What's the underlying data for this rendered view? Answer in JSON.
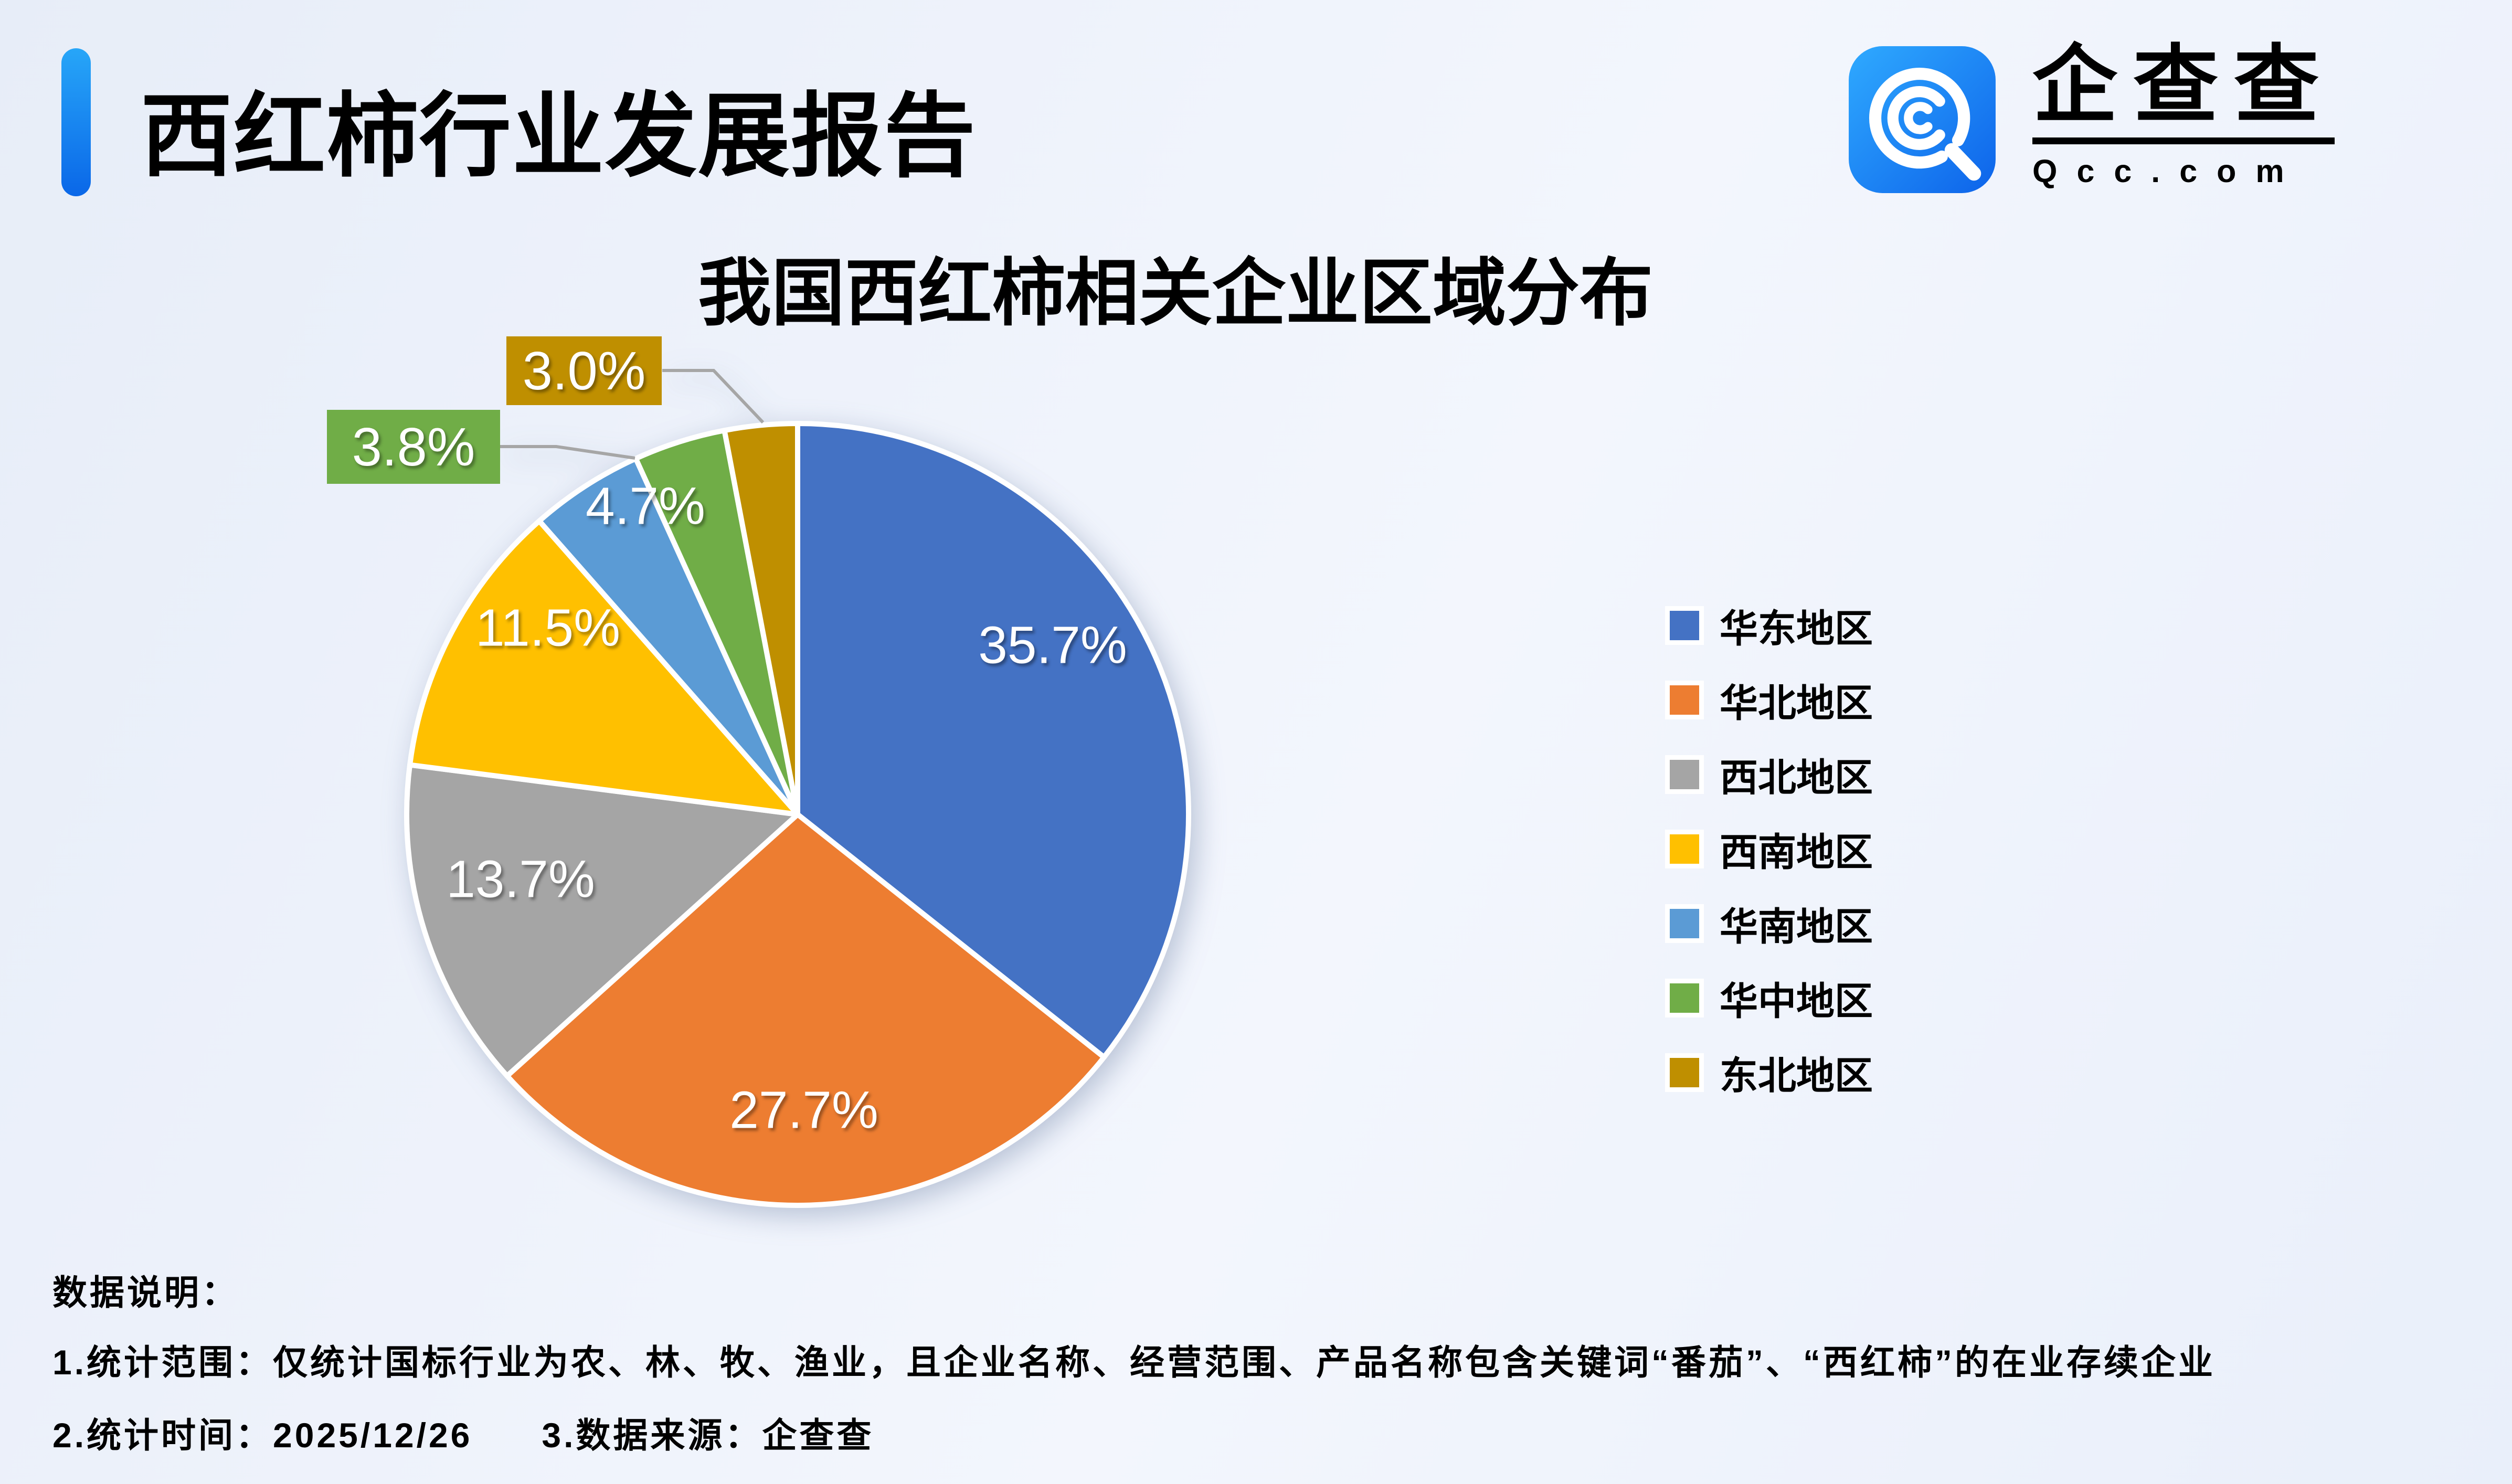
{
  "header": {
    "title": "西红柿行业发展报告",
    "logo": {
      "brand": "企查查",
      "domain": "Qcc.com"
    }
  },
  "chart_data": {
    "type": "pie",
    "title": "我国西红柿相关企业区域分布",
    "legend_position": "right",
    "start_angle_deg": 0,
    "direction": "clockwise",
    "value_unit": "percent",
    "slices": [
      {
        "name": "华东地区",
        "value": 35.7,
        "label": "35.7%",
        "color": "#4472C4"
      },
      {
        "name": "华北地区",
        "value": 27.7,
        "label": "27.7%",
        "color": "#ED7D31"
      },
      {
        "name": "西北地区",
        "value": 13.7,
        "label": "13.7%",
        "color": "#A5A5A5"
      },
      {
        "name": "西南地区",
        "value": 11.5,
        "label": "11.5%",
        "color": "#FFC000"
      },
      {
        "name": "华南地区",
        "value": 4.7,
        "label": "4.7%",
        "color": "#5B9BD5"
      },
      {
        "name": "华中地区",
        "value": 3.8,
        "label": "3.8%",
        "color": "#70AD47"
      },
      {
        "name": "东北地区",
        "value": 3.0,
        "label": "3.0%",
        "color": "#BF8F00"
      }
    ]
  },
  "footer": {
    "heading": "数据说明：",
    "note1": "1.统计范围：仅统计国标行业为农、林、牧、渔业，且企业名称、经营范围、产品名称包含关键词“番茄”、“西红柿”的在业存续企业",
    "note2": "2.统计时间：2025/12/26",
    "note3": "3.数据来源：企查查"
  },
  "colors": {
    "accent_bar": "#1388F0",
    "background": "#EDF1FA",
    "leader_line": "#A6A6A6",
    "slice_label_text": "#FFFFFF",
    "logo_gradient_start": "#2FAAFF",
    "logo_gradient_end": "#0D63EA"
  }
}
